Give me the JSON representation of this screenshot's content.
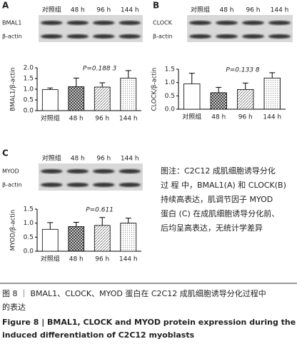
{
  "chart_data": [
    {
      "type": "bar",
      "panel": "A",
      "ylabel": "BMAL1/β-actin",
      "annotation": "P=0.188 3",
      "categories": [
        "对照组",
        "48 h",
        "96 h",
        "144 h"
      ],
      "values": [
        0.98,
        1.12,
        1.1,
        1.52
      ],
      "errors": [
        0.08,
        0.4,
        0.2,
        0.35
      ],
      "ylim": [
        0,
        2
      ],
      "yticks": [
        {
          "value": 0,
          "label": "0.0"
        },
        {
          "value": 0.5,
          "label": "0.5"
        },
        {
          "value": 1,
          "label": "1.0"
        },
        {
          "value": 1.5,
          "label": "1.5"
        },
        {
          "value": 2,
          "label": "2.0"
        }
      ]
    },
    {
      "type": "bar",
      "panel": "B",
      "ylabel": "CLOCK/β-actin",
      "annotation": "P=0.133 8",
      "categories": [
        "对照组",
        "48 h",
        "96 h",
        "144 h"
      ],
      "values": [
        0.95,
        0.62,
        0.74,
        1.17
      ],
      "errors": [
        0.4,
        0.2,
        0.24,
        0.2
      ],
      "ylim": [
        0,
        1.5
      ],
      "yticks": [
        {
          "value": 0,
          "label": "0.0"
        },
        {
          "value": 0.5,
          "label": "0.5"
        },
        {
          "value": 1,
          "label": "1.0"
        },
        {
          "value": 1.5,
          "label": "1.5"
        }
      ]
    },
    {
      "type": "bar",
      "panel": "C",
      "ylabel": "MYOD/β-actin",
      "annotation": "P=0.611",
      "categories": [
        "对照组",
        "48 h",
        "96 h",
        "144 h"
      ],
      "values": [
        0.78,
        0.88,
        0.92,
        1.0
      ],
      "errors": [
        0.24,
        0.15,
        0.28,
        0.18
      ],
      "ylim": [
        0,
        1.5
      ],
      "yticks": [
        {
          "value": 0,
          "label": "0.0"
        },
        {
          "value": 0.5,
          "label": "0.5"
        },
        {
          "value": 1,
          "label": "1.0"
        },
        {
          "value": 1.5,
          "label": "1.5"
        }
      ]
    }
  ],
  "blots": [
    {
      "lanes": [
        "对照组",
        "48 h",
        "96 h",
        "144 h"
      ],
      "rows": [
        "BMAL1",
        "β-actin"
      ]
    },
    {
      "lanes": [
        "对照组",
        "48 h",
        "96 h",
        "144 h"
      ],
      "rows": [
        "CLOCK",
        "β-actin"
      ]
    },
    {
      "lanes": [
        "对照组",
        "48 h",
        "96 h",
        "144 h"
      ],
      "rows": [
        "MYOD",
        "β-actin"
      ]
    }
  ],
  "note": [
    "图注：C2C12 成肌细胞诱导分化",
    "过 程 中，BMAL1(A) 和 CLOCK(B)",
    "持续高表达，肌调节因子 MYOD",
    "蛋白 (C) 在成肌细胞诱导分化前、",
    "后均呈高表达，无统计学差异"
  ],
  "caption_cn": [
    "图 8 ｜ BMAL1、CLOCK、MYOD 蛋白在 C2C12 成肌细胞诱导分化过程中",
    "的表达"
  ],
  "caption_en": [
    "Figure 8 | BMAL1, CLOCK and MYOD protein expression during the",
    "induced differentiation of C2C12 myoblasts"
  ]
}
